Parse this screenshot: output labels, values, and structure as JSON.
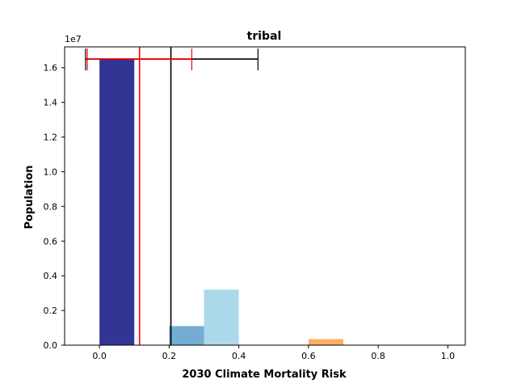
{
  "chart_data": {
    "type": "bar",
    "title": "tribal",
    "xlabel": "2030 Climate Mortality Risk",
    "ylabel": "Population",
    "offset_text": "1e7",
    "xlim": [
      -0.1,
      1.05
    ],
    "ylim": [
      0,
      1.72
    ],
    "xticks": [
      0.0,
      0.2,
      0.4,
      0.6,
      0.8,
      1.0
    ],
    "xtick_labels": [
      "0.0",
      "0.2",
      "0.4",
      "0.6",
      "0.8",
      "1.0"
    ],
    "yticks": [
      0.0,
      0.2,
      0.4,
      0.6,
      0.8,
      1.0,
      1.2,
      1.4,
      1.6
    ],
    "ytick_labels": [
      "0.0",
      "0.2",
      "0.4",
      "0.6",
      "0.8",
      "1.0",
      "1.2",
      "1.4",
      "1.6"
    ],
    "bars": [
      {
        "x0": 0.0,
        "x1": 0.1,
        "value": 1.65,
        "color": "#313695"
      },
      {
        "x0": 0.2,
        "x1": 0.3,
        "value": 0.11,
        "color": "#74add1"
      },
      {
        "x0": 0.3,
        "x1": 0.4,
        "value": 0.32,
        "color": "#abd9e9"
      },
      {
        "x0": 0.6,
        "x1": 0.7,
        "value": 0.035,
        "color": "#fdae61"
      }
    ],
    "vlines": [
      {
        "x": 0.205,
        "color": "#000000"
      },
      {
        "x": 0.115,
        "color": "#ff0000"
      }
    ],
    "errorbars": [
      {
        "y": 1.65,
        "xmin": -0.04,
        "xmax": 0.455,
        "color": "#000000"
      },
      {
        "y": 1.65,
        "xmin": -0.035,
        "xmax": 0.265,
        "color": "#ff0000"
      }
    ],
    "grid": false
  }
}
